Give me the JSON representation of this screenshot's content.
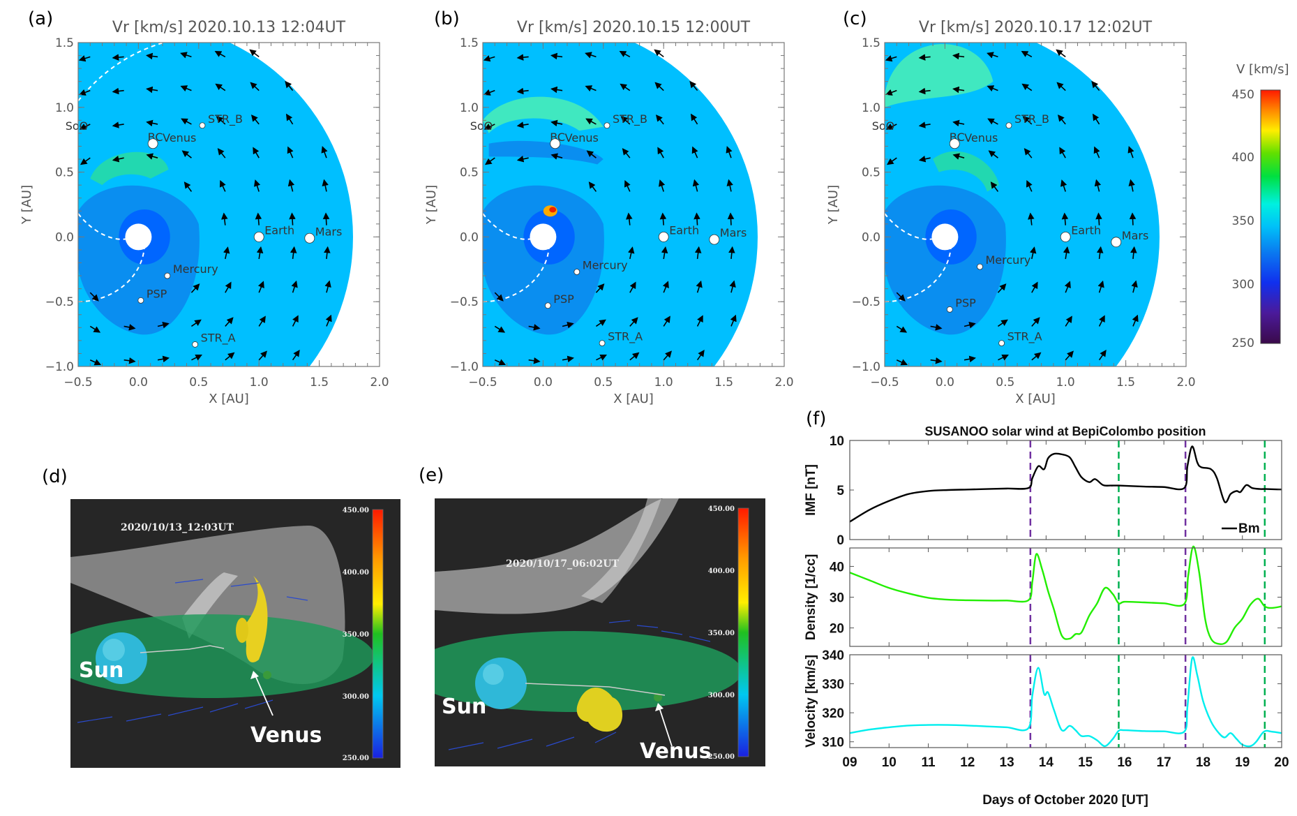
{
  "figure": {
    "panel_labels": [
      "(a)",
      "(b)",
      "(c)",
      "(d)",
      "(e)",
      "(f)"
    ]
  },
  "sim_panels": [
    {
      "title": "Vr   [km/s]   2020.10.13  12:04UT",
      "variant": "a"
    },
    {
      "title": "Vr   [km/s]   2020.10.15  12:00UT",
      "variant": "b"
    },
    {
      "title": "Vr   [km/s]   2020.10.17  12:02UT",
      "variant": "c"
    }
  ],
  "sim_axes": {
    "xlabel": "X  [AU]",
    "ylabel": "Y  [AU]",
    "xticks": [
      "-0.5",
      "0.0",
      "0.5",
      "1.0",
      "1.5",
      "2.0"
    ],
    "yticks": [
      "1.5",
      "1.0",
      "0.5",
      "0.0",
      "-0.5",
      "-1.0"
    ],
    "xlim": [
      -0.5,
      2.0
    ],
    "ylim": [
      -1.0,
      1.5
    ]
  },
  "bodies": [
    {
      "name": "SoO"
    },
    {
      "name": "BC"
    },
    {
      "name": "Venus"
    },
    {
      "name": "STR_B"
    },
    {
      "name": "Earth"
    },
    {
      "name": "Mars"
    },
    {
      "name": "Mercury"
    },
    {
      "name": "PSP"
    },
    {
      "name": "STR_A"
    }
  ],
  "colorbar": {
    "label": "V [km/s]",
    "ticks": [
      "450",
      "400",
      "350",
      "300",
      "250"
    ],
    "range": [
      250,
      450
    ]
  },
  "views3d": [
    {
      "timestamp": "2020/10/13_12:03UT",
      "sun_label": "Sun",
      "venus_label": "Venus",
      "cb_ticks": [
        "450.00",
        "400.00",
        "350.00",
        "300.00",
        "250.00"
      ]
    },
    {
      "timestamp": "2020/10/17_06:02UT",
      "sun_label": "Sun",
      "venus_label": "Venus",
      "cb_ticks": [
        "450.00",
        "400.00",
        "350.00",
        "300.00",
        "250.00"
      ]
    }
  ],
  "colors": {
    "background_wind": "#00bfff",
    "slow_wind": "#0a8ef0",
    "core_wind": "#0066ff",
    "imf_line": "#000000",
    "density_line": "#22ee00",
    "velocity_line": "#00eeee",
    "shock_marker": "#7030a0",
    "end_marker": "#00b050",
    "panel3d_bg": "#262626"
  },
  "chart_data": {
    "type": "line",
    "title": "SUSANOO solar wind at BepiColombo position",
    "xlabel": "Days of October 2020 [UT]",
    "xlim": [
      9,
      20
    ],
    "xticks": [
      "09",
      "10",
      "11",
      "12",
      "13",
      "14",
      "15",
      "16",
      "17",
      "18",
      "19",
      "20"
    ],
    "vlines": [
      {
        "x": 13.6,
        "style": "purple-dashed"
      },
      {
        "x": 15.85,
        "style": "green-dashed"
      },
      {
        "x": 17.55,
        "style": "purple-dashed"
      },
      {
        "x": 19.57,
        "style": "green-dashed"
      }
    ],
    "subplots": [
      {
        "ylabel": "IMF [nT]",
        "ylim": [
          0,
          10
        ],
        "yticks": [
          "0",
          "5",
          "10"
        ],
        "legend": "Bm",
        "series": {
          "name": "Bm",
          "x": [
            9.0,
            9.5,
            10.0,
            10.5,
            11.0,
            11.5,
            12.0,
            12.5,
            13.0,
            13.55,
            13.65,
            13.8,
            13.95,
            14.05,
            14.2,
            14.4,
            14.6,
            14.75,
            14.9,
            15.1,
            15.25,
            15.45,
            15.65,
            15.85,
            16.5,
            17.0,
            17.52,
            17.6,
            17.72,
            17.85,
            17.95,
            18.2,
            18.35,
            18.55,
            18.7,
            18.85,
            18.95,
            19.1,
            19.25,
            19.45,
            19.6,
            20.0
          ],
          "y": [
            1.8,
            3.0,
            3.9,
            4.6,
            4.9,
            5.0,
            5.05,
            5.1,
            5.15,
            5.2,
            6.2,
            7.4,
            7.1,
            8.2,
            8.65,
            8.6,
            8.3,
            7.3,
            6.3,
            5.8,
            6.1,
            5.5,
            5.45,
            5.45,
            5.35,
            5.3,
            5.2,
            7.4,
            9.4,
            7.8,
            7.3,
            7.1,
            6.2,
            3.8,
            4.6,
            4.9,
            4.8,
            5.5,
            5.2,
            5.1,
            5.1,
            5.05
          ]
        }
      },
      {
        "ylabel": "Density [1/cc]",
        "ylim": [
          14,
          46
        ],
        "yticks": [
          "20",
          "30",
          "40"
        ],
        "series": {
          "name": "Density",
          "x": [
            9.0,
            9.5,
            10.0,
            10.5,
            11.0,
            11.5,
            12.0,
            12.5,
            13.0,
            13.55,
            13.65,
            13.75,
            13.9,
            14.05,
            14.2,
            14.4,
            14.6,
            14.75,
            14.9,
            15.1,
            15.3,
            15.5,
            15.7,
            15.85,
            16.0,
            16.5,
            17.0,
            17.52,
            17.62,
            17.75,
            17.9,
            18.05,
            18.2,
            18.4,
            18.6,
            18.8,
            19.0,
            19.2,
            19.4,
            19.57,
            19.75,
            20.0
          ],
          "y": [
            38.0,
            35.5,
            33.0,
            31.2,
            29.8,
            29.2,
            29.0,
            28.9,
            28.9,
            29.0,
            35.0,
            44.0,
            39.0,
            32.0,
            26.0,
            17.5,
            16.5,
            18.0,
            18.5,
            24.0,
            28.0,
            33.0,
            31.0,
            28.0,
            28.5,
            28.3,
            28.0,
            27.8,
            37.0,
            46.5,
            38.0,
            23.0,
            16.5,
            14.8,
            15.5,
            20.0,
            23.0,
            27.5,
            29.5,
            27.0,
            26.5,
            27.0
          ]
        }
      },
      {
        "ylabel": "Velocity [km/s]",
        "ylim": [
          308,
          340
        ],
        "yticks": [
          "310",
          "320",
          "330",
          "340"
        ],
        "series": {
          "name": "Velocity",
          "x": [
            9.0,
            9.5,
            10.0,
            10.5,
            11.0,
            11.5,
            12.0,
            12.5,
            13.0,
            13.55,
            13.65,
            13.8,
            13.95,
            14.05,
            14.2,
            14.4,
            14.6,
            14.75,
            14.9,
            15.1,
            15.3,
            15.5,
            15.7,
            15.85,
            16.0,
            16.5,
            17.0,
            17.52,
            17.6,
            17.72,
            17.85,
            18.0,
            18.2,
            18.4,
            18.55,
            18.7,
            18.85,
            19.0,
            19.2,
            19.35,
            19.55,
            19.75,
            20.0
          ],
          "y": [
            313.0,
            314.2,
            315.0,
            315.6,
            315.8,
            315.8,
            315.6,
            315.3,
            315.0,
            314.7,
            326.0,
            335.5,
            326.5,
            327.0,
            321.0,
            314.0,
            315.5,
            314.0,
            312.0,
            312.0,
            310.5,
            308.5,
            311.0,
            313.8,
            314.0,
            313.7,
            313.6,
            313.5,
            322.0,
            338.8,
            333.0,
            324.0,
            317.0,
            313.0,
            311.5,
            313.0,
            311.0,
            309.0,
            308.5,
            310.0,
            313.5,
            313.5,
            313.0
          ]
        }
      }
    ]
  }
}
